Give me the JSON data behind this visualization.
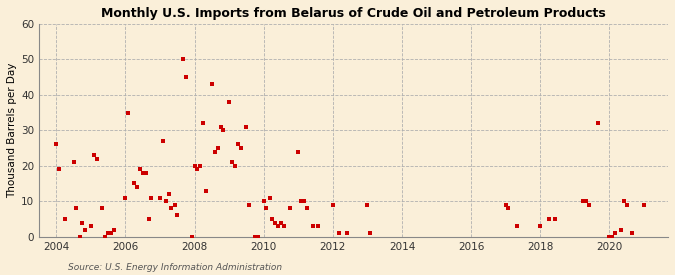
{
  "title": "Monthly U.S. Imports from Belarus of Crude Oil and Petroleum Products",
  "ylabel": "Thousand Barrels per Day",
  "source": "Source: U.S. Energy Information Administration",
  "background_color": "#faefd9",
  "marker_color": "#cc0000",
  "ylim": [
    0,
    60
  ],
  "yticks": [
    0,
    10,
    20,
    30,
    40,
    50,
    60
  ],
  "xlim_start": 2003.5,
  "xlim_end": 2021.7,
  "xticks": [
    2004,
    2006,
    2008,
    2010,
    2012,
    2014,
    2016,
    2018,
    2020
  ],
  "data_points": [
    [
      2004.0,
      26
    ],
    [
      2004.08,
      19
    ],
    [
      2004.25,
      5
    ],
    [
      2004.5,
      21
    ],
    [
      2004.58,
      8
    ],
    [
      2004.67,
      0
    ],
    [
      2004.75,
      4
    ],
    [
      2004.83,
      2
    ],
    [
      2005.0,
      3
    ],
    [
      2005.08,
      23
    ],
    [
      2005.17,
      22
    ],
    [
      2005.33,
      8
    ],
    [
      2005.42,
      0
    ],
    [
      2005.5,
      1
    ],
    [
      2005.58,
      1
    ],
    [
      2005.67,
      2
    ],
    [
      2006.0,
      11
    ],
    [
      2006.08,
      35
    ],
    [
      2006.25,
      15
    ],
    [
      2006.33,
      14
    ],
    [
      2006.42,
      19
    ],
    [
      2006.5,
      18
    ],
    [
      2006.58,
      18
    ],
    [
      2006.67,
      5
    ],
    [
      2006.75,
      11
    ],
    [
      2007.0,
      11
    ],
    [
      2007.08,
      27
    ],
    [
      2007.17,
      10
    ],
    [
      2007.25,
      12
    ],
    [
      2007.33,
      8
    ],
    [
      2007.42,
      9
    ],
    [
      2007.5,
      6
    ],
    [
      2007.67,
      50
    ],
    [
      2007.75,
      45
    ],
    [
      2007.92,
      0
    ],
    [
      2008.0,
      20
    ],
    [
      2008.08,
      19
    ],
    [
      2008.17,
      20
    ],
    [
      2008.25,
      32
    ],
    [
      2008.33,
      13
    ],
    [
      2008.5,
      43
    ],
    [
      2008.58,
      24
    ],
    [
      2008.67,
      25
    ],
    [
      2008.75,
      31
    ],
    [
      2008.83,
      30
    ],
    [
      2009.0,
      38
    ],
    [
      2009.08,
      21
    ],
    [
      2009.17,
      20
    ],
    [
      2009.25,
      26
    ],
    [
      2009.33,
      25
    ],
    [
      2009.5,
      31
    ],
    [
      2009.58,
      9
    ],
    [
      2009.75,
      0
    ],
    [
      2009.83,
      0
    ],
    [
      2010.0,
      10
    ],
    [
      2010.08,
      8
    ],
    [
      2010.17,
      11
    ],
    [
      2010.25,
      5
    ],
    [
      2010.33,
      4
    ],
    [
      2010.42,
      3
    ],
    [
      2010.5,
      4
    ],
    [
      2010.58,
      3
    ],
    [
      2010.75,
      8
    ],
    [
      2011.0,
      24
    ],
    [
      2011.08,
      10
    ],
    [
      2011.17,
      10
    ],
    [
      2011.25,
      8
    ],
    [
      2011.42,
      3
    ],
    [
      2011.58,
      3
    ],
    [
      2012.0,
      9
    ],
    [
      2012.17,
      1
    ],
    [
      2012.42,
      1
    ],
    [
      2013.0,
      9
    ],
    [
      2013.08,
      1
    ],
    [
      2017.0,
      9
    ],
    [
      2017.08,
      8
    ],
    [
      2017.33,
      3
    ],
    [
      2018.0,
      3
    ],
    [
      2018.25,
      5
    ],
    [
      2018.42,
      5
    ],
    [
      2019.25,
      10
    ],
    [
      2019.33,
      10
    ],
    [
      2019.42,
      9
    ],
    [
      2019.67,
      32
    ],
    [
      2020.0,
      0
    ],
    [
      2020.08,
      0
    ],
    [
      2020.17,
      1
    ],
    [
      2020.33,
      2
    ],
    [
      2020.42,
      10
    ],
    [
      2020.5,
      9
    ],
    [
      2020.67,
      1
    ],
    [
      2021.0,
      9
    ]
  ]
}
